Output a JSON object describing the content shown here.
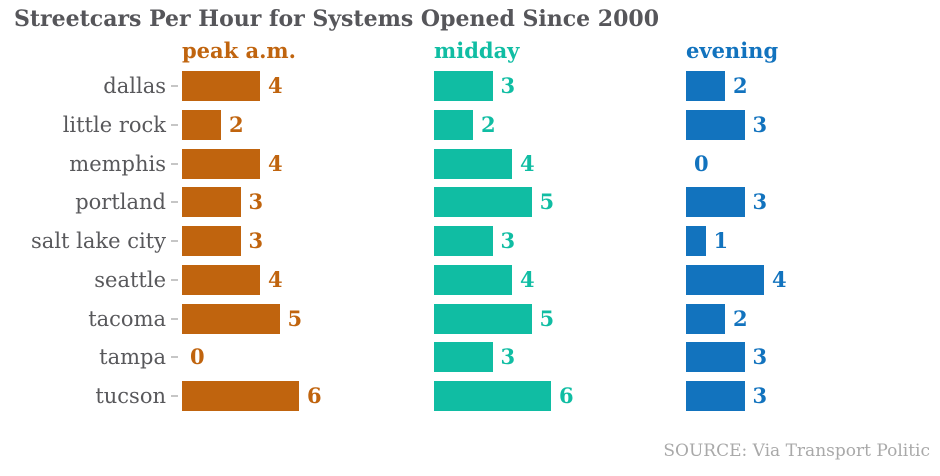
{
  "title": "Streetcars Per Hour for Systems Opened Since 2000",
  "source": "SOURCE: Via Transport Politic",
  "colors": {
    "peak_am": "#c0640e",
    "midday": "#10bda3",
    "evening": "#1273be",
    "title_text": "#56565a",
    "row_label": "#58585b",
    "tick": "#c6c6c6",
    "source_text": "#a9a9a9",
    "background": "#ffffff"
  },
  "chart_data": {
    "type": "bar",
    "orientation": "horizontal",
    "title": "Streetcars Per Hour for Systems Opened Since 2000",
    "xlabel": "",
    "ylabel": "",
    "xlim": [
      0,
      6
    ],
    "grid": false,
    "legend_position": "top-as-column-headers",
    "value_labels": true,
    "categories": [
      "dallas",
      "little rock",
      "memphis",
      "portland",
      "salt lake city",
      "seattle",
      "tacoma",
      "tampa",
      "tucson"
    ],
    "series": [
      {
        "name": "peak a.m.",
        "color": "#c0640e",
        "values": [
          4,
          2,
          4,
          3,
          3,
          4,
          5,
          0,
          6
        ]
      },
      {
        "name": "midday",
        "color": "#10bda3",
        "values": [
          3,
          2,
          4,
          5,
          3,
          4,
          5,
          3,
          6
        ]
      },
      {
        "name": "evening",
        "color": "#1273be",
        "values": [
          2,
          3,
          0,
          3,
          1,
          4,
          2,
          3,
          3
        ]
      }
    ]
  },
  "layout_note": "small multiples: one bar column per series"
}
